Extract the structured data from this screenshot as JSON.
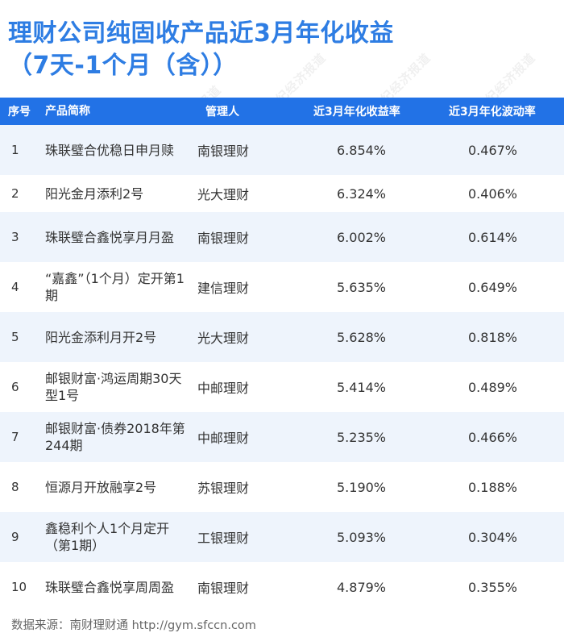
{
  "title": {
    "line1": "理财公司纯固收产品近3月年化收益",
    "line2": "（7天-1个月（含））"
  },
  "table": {
    "headers": [
      "序号",
      "产品简称",
      "管理人",
      "近3月年化收益率",
      "近3月年化波动率"
    ],
    "rows": [
      {
        "no": "1",
        "name": "珠联璧合优稳日申月赎",
        "manager": "南银理财",
        "return": "6.854%",
        "volatility": "0.467%"
      },
      {
        "no": "2",
        "name": "阳光金月添利2号",
        "manager": "光大理财",
        "return": "6.324%",
        "volatility": "0.406%"
      },
      {
        "no": "3",
        "name": "珠联璧合鑫悦享月月盈",
        "manager": "南银理财",
        "return": "6.002%",
        "volatility": "0.614%"
      },
      {
        "no": "4",
        "name": "“嘉鑫”（1个月）定开第1期",
        "manager": "建信理财",
        "return": "5.635%",
        "volatility": "0.649%"
      },
      {
        "no": "5",
        "name": "阳光金添利月开2号",
        "manager": "光大理财",
        "return": "5.628%",
        "volatility": "0.818%"
      },
      {
        "no": "6",
        "name": "邮银财富·鸿运周期30天型1号",
        "manager": "中邮理财",
        "return": "5.414%",
        "volatility": "0.489%"
      },
      {
        "no": "7",
        "name": "邮银财富·债券2018年第244期",
        "manager": "中邮理财",
        "return": "5.235%",
        "volatility": "0.466%"
      },
      {
        "no": "8",
        "name": "恒源月开放融享2号",
        "manager": "苏银理财",
        "return": "5.190%",
        "volatility": "0.188%"
      },
      {
        "no": "9",
        "name": "鑫稳利个人1个月定开（第1期）",
        "manager": "工银理财",
        "return": "5.093%",
        "volatility": "0.304%"
      },
      {
        "no": "10",
        "name": "珠联璧合鑫悦享周周盈",
        "manager": "南银理财",
        "return": "4.879%",
        "volatility": "0.355%"
      }
    ]
  },
  "footer": {
    "source": "数据来源：南财理财通 http://gym.sfccn.com"
  },
  "watermark": {
    "text": "21世纪经济报道"
  },
  "colors": {
    "title": "#2e7de3",
    "header_bg": "#2272e6",
    "stripe_bg": "#eef4fc"
  }
}
